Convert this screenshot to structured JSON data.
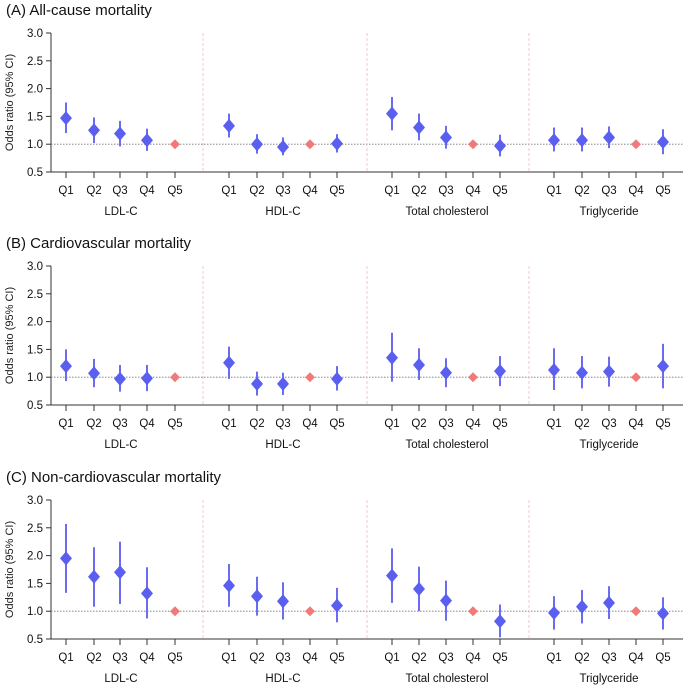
{
  "colors": {
    "estimate": "#5b5ff0",
    "ci": "#6b6cf2",
    "reference": "#f07a7a",
    "separator": "#f3b6c2"
  },
  "chart_data": [
    {
      "type": "scatter",
      "title": "(A) All-cause mortality",
      "ylabel": "Odds ratio (95% CI)",
      "ylim": [
        0.5,
        3.0
      ],
      "yticks": [
        "0.5",
        "1.0",
        "1.5",
        "2.0",
        "2.5",
        "3.0"
      ],
      "reference_line": 1.0,
      "quintiles": [
        "Q1",
        "Q2",
        "Q3",
        "Q4",
        "Q5"
      ],
      "groups": [
        {
          "name": "LDL-C",
          "reference": "Q5",
          "or": [
            1.47,
            1.25,
            1.19,
            1.07,
            1.0
          ],
          "lower": [
            1.2,
            1.02,
            0.96,
            0.88,
            1.0
          ],
          "upper": [
            1.75,
            1.48,
            1.42,
            1.28,
            1.0
          ]
        },
        {
          "name": "HDL-C",
          "reference": "Q4",
          "or": [
            1.33,
            1.0,
            0.95,
            1.0,
            1.01
          ],
          "lower": [
            1.12,
            0.83,
            0.8,
            1.0,
            0.85
          ],
          "upper": [
            1.55,
            1.18,
            1.12,
            1.0,
            1.18
          ]
        },
        {
          "name": "Total cholesterol",
          "reference": "Q4",
          "or": [
            1.55,
            1.3,
            1.12,
            1.0,
            0.97
          ],
          "lower": [
            1.25,
            1.07,
            0.92,
            1.0,
            0.78
          ],
          "upper": [
            1.85,
            1.55,
            1.33,
            1.0,
            1.17
          ]
        },
        {
          "name": "Triglyceride",
          "reference": "Q4",
          "or": [
            1.07,
            1.07,
            1.12,
            1.0,
            1.04
          ],
          "lower": [
            0.87,
            0.87,
            0.93,
            1.0,
            0.82
          ],
          "upper": [
            1.3,
            1.3,
            1.32,
            1.0,
            1.27
          ]
        }
      ]
    },
    {
      "type": "scatter",
      "title": "(B) Cardiovascular mortality",
      "ylabel": "Odds ratio (95% CI)",
      "ylim": [
        0.5,
        3.0
      ],
      "yticks": [
        "0.5",
        "1.0",
        "1.5",
        "2.0",
        "2.5",
        "3.0"
      ],
      "reference_line": 1.0,
      "quintiles": [
        "Q1",
        "Q2",
        "Q3",
        "Q4",
        "Q5"
      ],
      "groups": [
        {
          "name": "LDL-C",
          "reference": "Q5",
          "or": [
            1.2,
            1.07,
            0.97,
            0.98,
            1.0
          ],
          "lower": [
            0.93,
            0.82,
            0.74,
            0.75,
            1.0
          ],
          "upper": [
            1.5,
            1.33,
            1.22,
            1.22,
            1.0
          ]
        },
        {
          "name": "HDL-C",
          "reference": "Q4",
          "or": [
            1.26,
            0.88,
            0.88,
            1.0,
            0.97
          ],
          "lower": [
            0.97,
            0.67,
            0.68,
            1.0,
            0.76
          ],
          "upper": [
            1.55,
            1.1,
            1.08,
            1.0,
            1.2
          ]
        },
        {
          "name": "Total cholesterol",
          "reference": "Q4",
          "or": [
            1.35,
            1.22,
            1.08,
            1.0,
            1.11
          ],
          "lower": [
            0.92,
            0.95,
            0.82,
            1.0,
            0.84
          ],
          "upper": [
            1.8,
            1.52,
            1.34,
            1.0,
            1.38
          ]
        },
        {
          "name": "Triglyceride",
          "reference": "Q4",
          "or": [
            1.13,
            1.08,
            1.1,
            1.0,
            1.2
          ],
          "lower": [
            0.77,
            0.8,
            0.83,
            1.0,
            0.8
          ],
          "upper": [
            1.52,
            1.38,
            1.37,
            1.0,
            1.6
          ]
        }
      ]
    },
    {
      "type": "scatter",
      "title": "(C) Non-cardiovascular mortality",
      "ylabel": "Odds ratio (95% CI)",
      "ylim": [
        0.5,
        3.0
      ],
      "yticks": [
        "0.5",
        "1.0",
        "1.5",
        "2.0",
        "2.5",
        "3.0"
      ],
      "reference_line": 1.0,
      "quintiles": [
        "Q1",
        "Q2",
        "Q3",
        "Q4",
        "Q5"
      ],
      "groups": [
        {
          "name": "LDL-C",
          "reference": "Q5",
          "or": [
            1.95,
            1.62,
            1.7,
            1.32,
            1.0
          ],
          "lower": [
            1.33,
            1.08,
            1.13,
            0.87,
            1.0
          ],
          "upper": [
            2.57,
            2.15,
            2.25,
            1.79,
            1.0
          ]
        },
        {
          "name": "HDL-C",
          "reference": "Q4",
          "or": [
            1.46,
            1.27,
            1.18,
            1.0,
            1.1
          ],
          "lower": [
            1.08,
            0.92,
            0.85,
            1.0,
            0.8
          ],
          "upper": [
            1.85,
            1.62,
            1.52,
            1.0,
            1.42
          ]
        },
        {
          "name": "Total cholesterol",
          "reference": "Q4",
          "or": [
            1.64,
            1.4,
            1.19,
            1.0,
            0.82
          ],
          "lower": [
            1.15,
            1.0,
            0.83,
            1.0,
            0.53
          ],
          "upper": [
            2.13,
            1.8,
            1.55,
            1.0,
            1.12
          ]
        },
        {
          "name": "Triglyceride",
          "reference": "Q4",
          "or": [
            0.97,
            1.08,
            1.15,
            1.0,
            0.96
          ],
          "lower": [
            0.67,
            0.78,
            0.86,
            1.0,
            0.67
          ],
          "upper": [
            1.27,
            1.38,
            1.45,
            1.0,
            1.25
          ]
        }
      ]
    }
  ]
}
